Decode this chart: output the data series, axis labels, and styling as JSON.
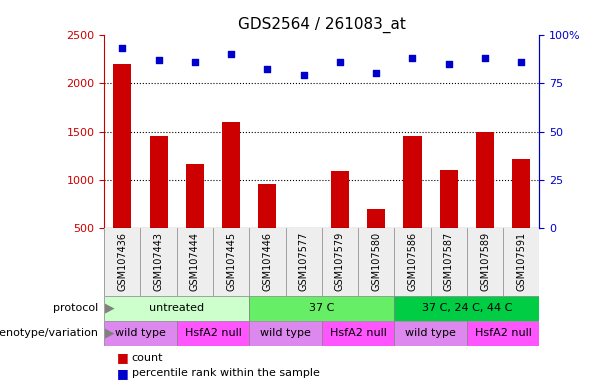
{
  "title": "GDS2564 / 261083_at",
  "samples": [
    "GSM107436",
    "GSM107443",
    "GSM107444",
    "GSM107445",
    "GSM107446",
    "GSM107577",
    "GSM107579",
    "GSM107580",
    "GSM107586",
    "GSM107587",
    "GSM107589",
    "GSM107591"
  ],
  "counts": [
    2200,
    1450,
    1160,
    1600,
    960,
    510,
    1090,
    700,
    1450,
    1100,
    1500,
    1220
  ],
  "percentiles": [
    93,
    87,
    86,
    90,
    82,
    79,
    86,
    80,
    88,
    85,
    88,
    86
  ],
  "bar_color": "#cc0000",
  "dot_color": "#0000cc",
  "ylim_left": [
    500,
    2500
  ],
  "ylim_right": [
    0,
    100
  ],
  "yticks_left": [
    500,
    1000,
    1500,
    2000,
    2500
  ],
  "yticks_right": [
    0,
    25,
    50,
    75,
    100
  ],
  "protocol_groups": [
    {
      "label": "untreated",
      "start": 0,
      "end": 4,
      "color": "#ccffcc"
    },
    {
      "label": "37 C",
      "start": 4,
      "end": 8,
      "color": "#66ee66"
    },
    {
      "label": "37 C, 24 C, 44 C",
      "start": 8,
      "end": 12,
      "color": "#00cc44"
    }
  ],
  "genotype_groups": [
    {
      "label": "wild type",
      "start": 0,
      "end": 2,
      "color": "#dd88ee"
    },
    {
      "label": "HsfA2 null",
      "start": 2,
      "end": 4,
      "color": "#ff55ff"
    },
    {
      "label": "wild type",
      "start": 4,
      "end": 6,
      "color": "#dd88ee"
    },
    {
      "label": "HsfA2 null",
      "start": 6,
      "end": 8,
      "color": "#ff55ff"
    },
    {
      "label": "wild type",
      "start": 8,
      "end": 10,
      "color": "#dd88ee"
    },
    {
      "label": "HsfA2 null",
      "start": 10,
      "end": 12,
      "color": "#ff55ff"
    }
  ],
  "protocol_label": "protocol",
  "genotype_label": "genotype/variation",
  "legend_count": "count",
  "legend_percentile": "percentile rank within the sample",
  "background_color": "#ffffff"
}
